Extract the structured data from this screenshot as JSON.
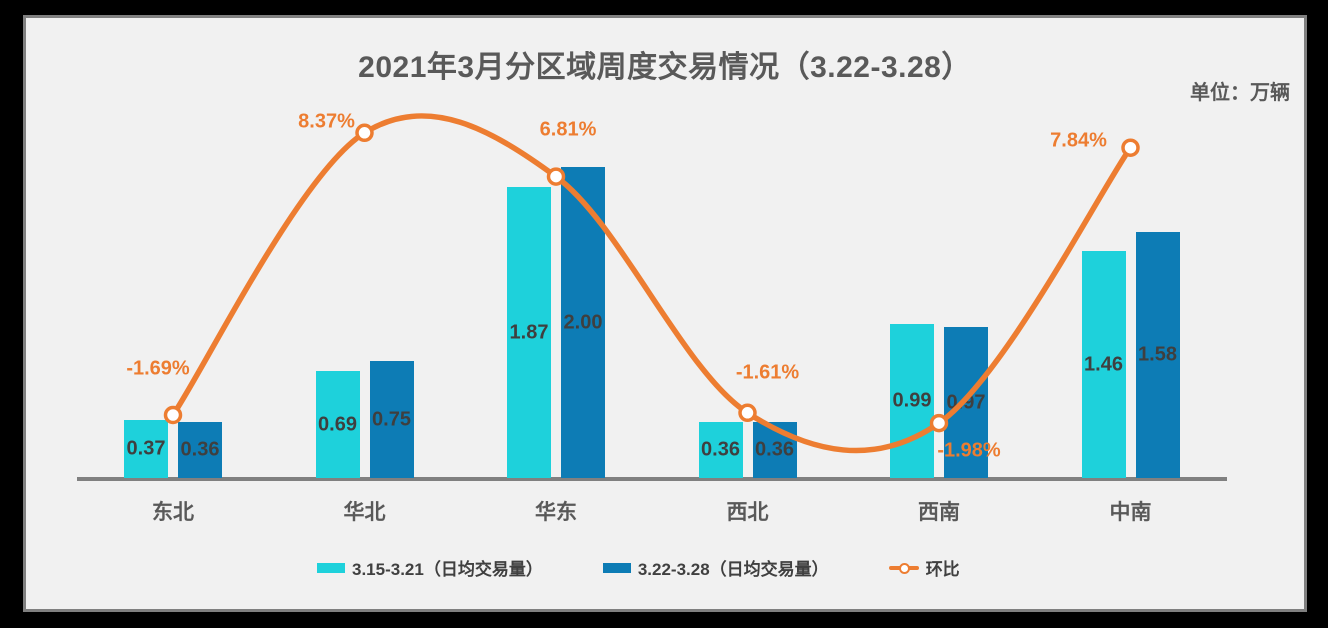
{
  "title": "2021年3月分区域周度交易情况（3.22-3.28）",
  "unit_label": "单位：万辆",
  "legend": {
    "items": [
      {
        "label": "3.15-3.21（日均交易量）",
        "type": "bar",
        "color": "#1ed1db"
      },
      {
        "label": "3.22-3.28（日均交易量）",
        "type": "bar",
        "color": "#0d7cb5"
      },
      {
        "label": "环比",
        "type": "line",
        "color": "#ed7d31"
      }
    ]
  },
  "chart_data": {
    "type": "combo-bar-line",
    "categories": [
      "东北",
      "华北",
      "华东",
      "西北",
      "西南",
      "中南"
    ],
    "unit": "万辆",
    "series": [
      {
        "name": "3.15-3.21（日均交易量）",
        "type": "bar",
        "color": "#1ed1db",
        "values": [
          0.37,
          0.69,
          1.87,
          0.36,
          0.99,
          1.46
        ]
      },
      {
        "name": "3.22-3.28（日均交易量）",
        "type": "bar",
        "color": "#0d7cb5",
        "values": [
          0.36,
          0.75,
          2.0,
          0.36,
          0.97,
          1.58
        ]
      },
      {
        "name": "环比",
        "type": "line",
        "color": "#ed7d31",
        "values_pct": [
          -1.69,
          8.37,
          6.81,
          -1.61,
          -1.98,
          7.84
        ]
      }
    ],
    "value_labels_shown": true,
    "pct_labels_shown": true,
    "legend_position": "bottom",
    "axes_hidden": true,
    "grid": false
  },
  "colors": {
    "background": "#f1f1f1",
    "outer_frame": "#000000",
    "frame_border": "#808080",
    "axis_line": "#808080",
    "title_text": "#595959",
    "bar_value_text": "#3f3f3f",
    "category_text": "#595959",
    "pct_text": "#ed7d31"
  }
}
